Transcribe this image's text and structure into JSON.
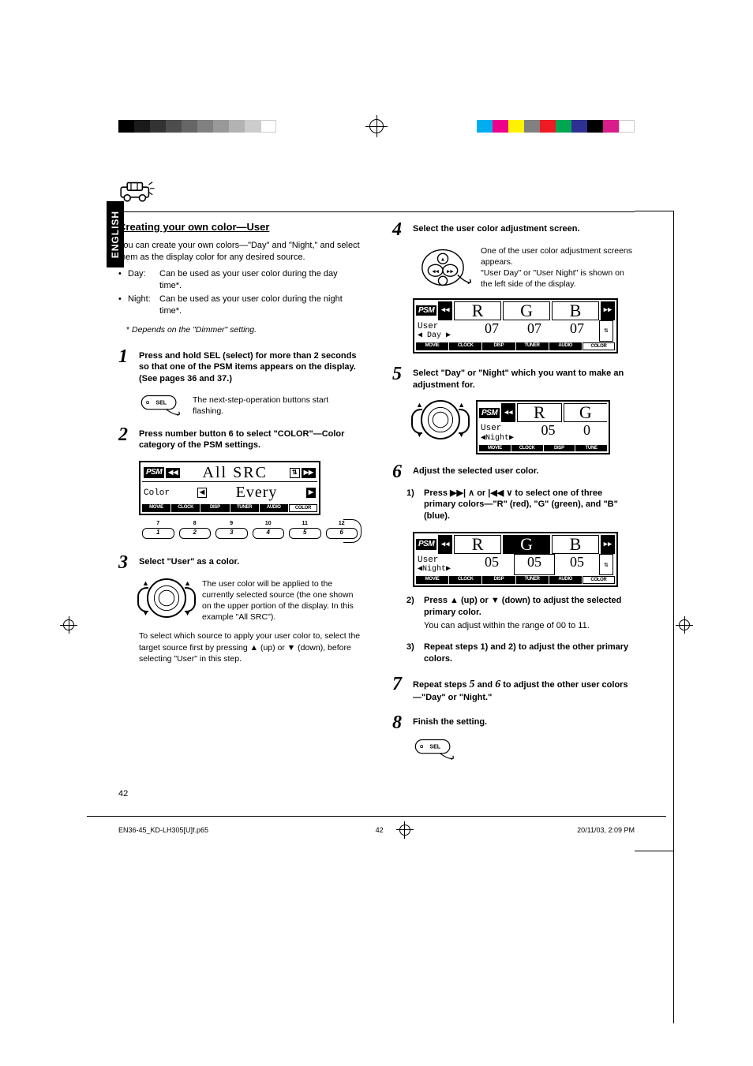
{
  "strips": {
    "left": [
      "#000000",
      "#1a1a1a",
      "#333333",
      "#4d4d4d",
      "#666666",
      "#808080",
      "#999999",
      "#b3b3b3",
      "#cccccc",
      "#ffffff"
    ],
    "right": [
      "#00aeef",
      "#ec008c",
      "#fff200",
      "#808080",
      "#ed1c24",
      "#00a651",
      "#2e3192",
      "#000000",
      "#d91e8c",
      "#ffffff"
    ]
  },
  "lang": "LINGSE",
  "lang_display": "ENGLISH",
  "section_title": "Creating your own color—User",
  "intro": "You can create your own colors—\"Day\" and \"Night,\" and select them as the display color for any desired source.",
  "bullets": [
    {
      "key": "Day:",
      "val": "Can be used as your user color during the day time*."
    },
    {
      "key": "Night:",
      "val": "Can be used as your user color during the night time*."
    }
  ],
  "footnote_marker": "*",
  "footnote": "Depends on the \"Dimmer\" setting.",
  "steps": {
    "s1": {
      "num": "1",
      "head": "Press and hold SEL (select) for more than 2 seconds so that one of the PSM items appears on the display. (See pages 36 and 37.)",
      "cap": "The next-step-operation buttons start flashing."
    },
    "s2": {
      "num": "2",
      "head": "Press number button 6 to select \"COLOR\"—Color category of the PSM settings."
    },
    "s3": {
      "num": "3",
      "head": "Select \"User\" as a color.",
      "cap": "The user color will be applied to the currently selected source (the one shown on the upper portion of the display. In this example \"All SRC\").",
      "para": "To select which source to apply your user color to, select the target source first by pressing ▲ (up) or ▼ (down), before selecting \"User\" in this step."
    },
    "s4": {
      "num": "4",
      "head": "Select the user color adjustment screen.",
      "cap": "One of the user color adjustment screens appears.\n\"User Day\" or \"User Night\" is shown on the left side of the display."
    },
    "s5": {
      "num": "5",
      "head": "Select \"Day\" or \"Night\" which you want to make an adjustment for."
    },
    "s6": {
      "num": "6",
      "head": "Adjust the selected user color.",
      "sub": [
        {
          "n": "1)",
          "head_pre": "Press ",
          "head_mid": " or ",
          "head_post": " to select one of three primary colors—\"R\" (red), \"G\" (green), and \"B\" (blue).",
          "icon1": "▶▶| ∧",
          "icon2": "|◀◀ ∨"
        },
        {
          "n": "2)",
          "head": "Press ▲ (up) or ▼ (down) to adjust the selected primary color.",
          "norm": "You can adjust within the range of 00 to 11."
        },
        {
          "n": "3)",
          "head": "Repeat steps 1) and 2) to adjust the other primary colors."
        }
      ]
    },
    "s7": {
      "num": "7",
      "head_pre": "Repeat steps ",
      "head_mid1": "5",
      "head_mid2": " and ",
      "head_mid3": "6",
      "head_post": " to adjust the other user colors—\"Day\" or \"Night.\""
    },
    "s8": {
      "num": "8",
      "head": "Finish the setting."
    }
  },
  "lcd1": {
    "psm": "PSM",
    "top": "All SRC",
    "left1": "Color",
    "mid": "Every",
    "tabs": [
      "MOVIE",
      "CLOCK",
      "DISP",
      "TUNER",
      "AUDIO",
      "COLOR"
    ],
    "tab_sel": 5
  },
  "num_btns": {
    "tops": [
      "7",
      "8",
      "9",
      "10",
      "11",
      "12"
    ],
    "nums": [
      "1",
      "2",
      "3",
      "4",
      "5",
      "6"
    ]
  },
  "lcd4": {
    "psm": "PSM",
    "rgb": [
      "R",
      "G",
      "B"
    ],
    "left1": "User",
    "left2": " Day ",
    "vals": [
      "07",
      "07",
      "07"
    ],
    "tabs": [
      "MOVIE",
      "CLOCK",
      "DISP",
      "TUNER",
      "AUDIO",
      "COLOR"
    ],
    "tab_sel": 5
  },
  "lcd5": {
    "psm": "PSM",
    "rgb_partial": [
      "R",
      "G"
    ],
    "left1": "User",
    "left2": "Night",
    "vals": [
      "05",
      "0"
    ],
    "tabs": [
      "MOVIE",
      "CLOCK",
      "DISP",
      "TUNE"
    ]
  },
  "lcd6": {
    "psm": "PSM",
    "rgb": [
      "R",
      "G",
      "B"
    ],
    "sel": 1,
    "left1": "User",
    "left2": "Night",
    "vals": [
      "05",
      "05",
      "05"
    ],
    "tabs": [
      "MOVIE",
      "CLOCK",
      "DISP",
      "TUNER",
      "AUDIO",
      "COLOR"
    ],
    "tab_sel": 5
  },
  "page_number": "42",
  "footer": {
    "file": "EN36-45_KD-LH305[U]f.p65",
    "page": "42",
    "date": "20/11/03, 2:09 PM"
  }
}
